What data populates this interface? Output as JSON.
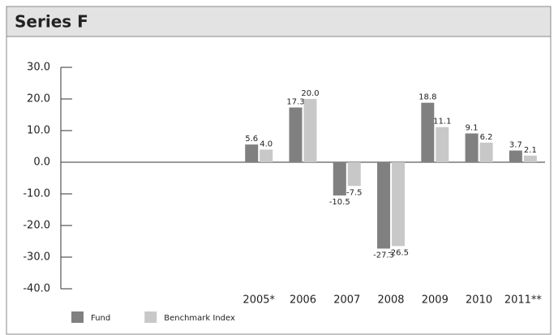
{
  "chart_data": {
    "type": "bar",
    "title": "Series F",
    "categories": [
      null,
      null,
      null,
      null,
      "2005*",
      "2006",
      "2007",
      "2008",
      "2009",
      "2010",
      "2011**"
    ],
    "series": [
      {
        "name": "Fund",
        "color": "#808080",
        "values": [
          null,
          null,
          null,
          null,
          5.6,
          17.3,
          -10.5,
          -27.3,
          18.8,
          9.1,
          3.7
        ]
      },
      {
        "name": "Benchmark Index",
        "color": "#c8c8c8",
        "values": [
          null,
          null,
          null,
          null,
          4,
          20,
          -7.5,
          -26.5,
          11.1,
          6.2,
          2.1
        ],
        "value_labels": [
          null,
          null,
          null,
          null,
          "4.0",
          "20.0",
          "-7.5",
          "-26.5",
          "11.1",
          "6.2",
          "2.1"
        ]
      }
    ],
    "ylim": [
      -40,
      30
    ],
    "yticks": [
      {
        "value": 30,
        "label": "30.0"
      },
      {
        "value": 20,
        "label": "20.0"
      },
      {
        "value": 10,
        "label": "10.0"
      },
      {
        "value": 0,
        "label": "0.0"
      },
      {
        "value": -10,
        "label": "-10.0"
      },
      {
        "value": -20,
        "label": "-20.0"
      },
      {
        "value": -30,
        "label": "-30.0"
      },
      {
        "value": -40,
        "label": "-40.0"
      }
    ]
  }
}
